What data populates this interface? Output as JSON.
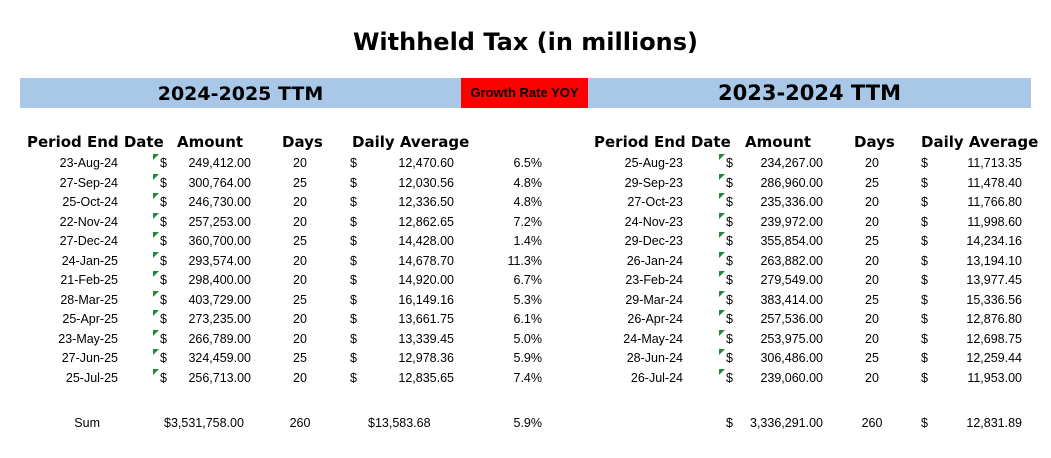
{
  "title": "Withheld Tax (in millions)",
  "left_header": "2024-2025 TTM",
  "growth_header": "Growth Rate YOY",
  "right_header": "2023-2024 TTM",
  "columns": {
    "period": "Period End Date",
    "amount": "Amount",
    "days": "Days",
    "daily": "Daily Average"
  },
  "left_rows": [
    {
      "date": "23-Aug-24",
      "cur": "$",
      "amount": "249,412.00",
      "days": "20",
      "dcur": "$",
      "daily": "12,470.60",
      "growth": "6.5%"
    },
    {
      "date": "27-Sep-24",
      "cur": "$",
      "amount": "300,764.00",
      "days": "25",
      "dcur": "$",
      "daily": "12,030.56",
      "growth": "4.8%"
    },
    {
      "date": "25-Oct-24",
      "cur": "$",
      "amount": "246,730.00",
      "days": "20",
      "dcur": "$",
      "daily": "12,336.50",
      "growth": "4.8%"
    },
    {
      "date": "22-Nov-24",
      "cur": "$",
      "amount": "257,253.00",
      "days": "20",
      "dcur": "$",
      "daily": "12,862.65",
      "growth": "7.2%"
    },
    {
      "date": "27-Dec-24",
      "cur": "$",
      "amount": "360,700.00",
      "days": "25",
      "dcur": "$",
      "daily": "14,428.00",
      "growth": "1.4%"
    },
    {
      "date": "24-Jan-25",
      "cur": "$",
      "amount": "293,574.00",
      "days": "20",
      "dcur": "$",
      "daily": "14,678.70",
      "growth": "11.3%"
    },
    {
      "date": "21-Feb-25",
      "cur": "$",
      "amount": "298,400.00",
      "days": "20",
      "dcur": "$",
      "daily": "14,920.00",
      "growth": "6.7%"
    },
    {
      "date": "28-Mar-25",
      "cur": "$",
      "amount": "403,729.00",
      "days": "25",
      "dcur": "$",
      "daily": "16,149.16",
      "growth": "5.3%"
    },
    {
      "date": "25-Apr-25",
      "cur": "$",
      "amount": "273,235.00",
      "days": "20",
      "dcur": "$",
      "daily": "13,661.75",
      "growth": "6.1%"
    },
    {
      "date": "23-May-25",
      "cur": "$",
      "amount": "266,789.00",
      "days": "20",
      "dcur": "$",
      "daily": "13,339.45",
      "growth": "5.0%"
    },
    {
      "date": "27-Jun-25",
      "cur": "$",
      "amount": "324,459.00",
      "days": "25",
      "dcur": "$",
      "daily": "12,978.36",
      "growth": "5.9%"
    },
    {
      "date": "25-Jul-25",
      "cur": "$",
      "amount": "256,713.00",
      "days": "20",
      "dcur": "$",
      "daily": "12,835.65",
      "growth": "7.4%"
    }
  ],
  "right_rows": [
    {
      "date": "25-Aug-23",
      "cur": "$",
      "amount": "234,267.00",
      "days": "20",
      "dcur": "$",
      "daily": "11,713.35"
    },
    {
      "date": "29-Sep-23",
      "cur": "$",
      "amount": "286,960.00",
      "days": "25",
      "dcur": "$",
      "daily": "11,478.40"
    },
    {
      "date": "27-Oct-23",
      "cur": "$",
      "amount": "235,336.00",
      "days": "20",
      "dcur": "$",
      "daily": "11,766.80"
    },
    {
      "date": "24-Nov-23",
      "cur": "$",
      "amount": "239,972.00",
      "days": "20",
      "dcur": "$",
      "daily": "11,998.60"
    },
    {
      "date": "29-Dec-23",
      "cur": "$",
      "amount": "355,854.00",
      "days": "25",
      "dcur": "$",
      "daily": "14,234.16"
    },
    {
      "date": "26-Jan-24",
      "cur": "$",
      "amount": "263,882.00",
      "days": "20",
      "dcur": "$",
      "daily": "13,194.10"
    },
    {
      "date": "23-Feb-24",
      "cur": "$",
      "amount": "279,549.00",
      "days": "20",
      "dcur": "$",
      "daily": "13,977.45"
    },
    {
      "date": "29-Mar-24",
      "cur": "$",
      "amount": "383,414.00",
      "days": "25",
      "dcur": "$",
      "daily": "15,336.56"
    },
    {
      "date": "26-Apr-24",
      "cur": "$",
      "amount": "257,536.00",
      "days": "20",
      "dcur": "$",
      "daily": "12,876.80"
    },
    {
      "date": "24-May-24",
      "cur": "$",
      "amount": "253,975.00",
      "days": "20",
      "dcur": "$",
      "daily": "12,698.75"
    },
    {
      "date": "28-Jun-24",
      "cur": "$",
      "amount": "306,486.00",
      "days": "25",
      "dcur": "$",
      "daily": "12,259.44"
    },
    {
      "date": "26-Jul-24",
      "cur": "$",
      "amount": "239,060.00",
      "days": "20",
      "dcur": "$",
      "daily": "11,953.00"
    }
  ],
  "left_sum": {
    "label": "Sum",
    "amount": "$3,531,758.00",
    "days": "260",
    "daily": "$13,583.68",
    "growth": "5.9%"
  },
  "right_sum": {
    "cur": "$",
    "amount": "3,336,291.00",
    "days": "260",
    "dcur": "$",
    "daily": "12,831.89"
  },
  "colors": {
    "band": "#a9c8e8",
    "growth_bg": "#ff0000",
    "indicator": "#1f8a3a"
  }
}
